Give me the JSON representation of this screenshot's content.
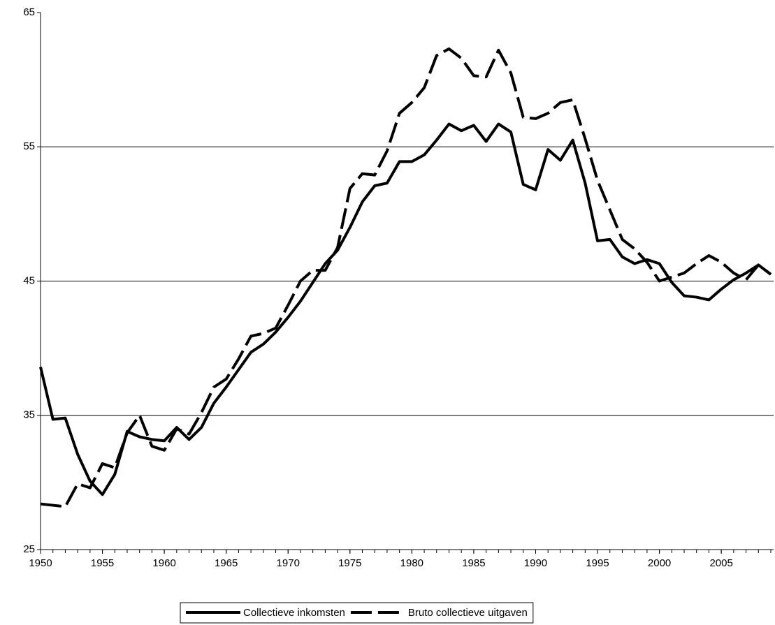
{
  "chart_data": {
    "type": "line",
    "x": [
      1950,
      1951,
      1952,
      1953,
      1954,
      1955,
      1956,
      1957,
      1958,
      1959,
      1960,
      1961,
      1962,
      1963,
      1964,
      1965,
      1966,
      1967,
      1968,
      1969,
      1970,
      1971,
      1972,
      1973,
      1974,
      1975,
      1976,
      1977,
      1978,
      1979,
      1980,
      1981,
      1982,
      1983,
      1984,
      1985,
      1986,
      1987,
      1988,
      1989,
      1990,
      1991,
      1992,
      1993,
      1994,
      1995,
      1996,
      1997,
      1998,
      1999,
      2000,
      2001,
      2002,
      2003,
      2004,
      2005,
      2006,
      2007,
      2008,
      2009
    ],
    "series": [
      {
        "name": "Collectieve inkomsten",
        "color": "#000000",
        "dash": false,
        "values": [
          38.6,
          34.7,
          34.8,
          32.1,
          30.1,
          29.1,
          30.6,
          33.8,
          33.4,
          33.2,
          33.1,
          34.1,
          33.2,
          34.1,
          35.9,
          37.1,
          38.4,
          39.7,
          40.3,
          41.2,
          42.3,
          43.5,
          44.9,
          46.3,
          47.3,
          49.0,
          50.9,
          52.1,
          52.3,
          53.9,
          53.9,
          54.4,
          55.5,
          56.7,
          56.2,
          56.6,
          55.4,
          56.7,
          56.1,
          52.2,
          51.8,
          54.8,
          54.0,
          55.5,
          52.3,
          48.0,
          48.1,
          46.8,
          46.3,
          46.6,
          46.3,
          44.9,
          43.9,
          43.8,
          43.6,
          44.4,
          45.1,
          45.6,
          46.2,
          45.5
        ]
      },
      {
        "name": "Bruto collectieve uitgaven",
        "color": "#000000",
        "dash": true,
        "values": [
          28.4,
          28.3,
          28.2,
          29.9,
          29.6,
          31.4,
          31.1,
          33.7,
          35.0,
          32.7,
          32.4,
          34.0,
          33.6,
          35.2,
          37.1,
          37.7,
          39.2,
          40.9,
          41.1,
          41.5,
          43.2,
          45.0,
          45.8,
          45.8,
          47.5,
          51.9,
          53.0,
          52.9,
          54.7,
          57.5,
          58.3,
          59.4,
          61.8,
          62.3,
          61.6,
          60.3,
          60.2,
          62.2,
          60.5,
          57.2,
          57.1,
          57.5,
          58.3,
          58.5,
          55.6,
          52.5,
          50.3,
          48.1,
          47.4,
          46.4,
          45.0,
          45.3,
          45.6,
          46.3,
          46.9,
          46.4,
          45.6,
          45.1,
          46.2,
          45.5
        ]
      }
    ],
    "xlim": [
      1950,
      2009
    ],
    "xticks": [
      1950,
      1955,
      1960,
      1965,
      1970,
      1975,
      1980,
      1985,
      1990,
      1995,
      2000,
      2005
    ],
    "ylim": [
      25,
      65
    ],
    "yticks": [
      25,
      35,
      45,
      55,
      65
    ],
    "grid": true,
    "legend": "bottom"
  }
}
